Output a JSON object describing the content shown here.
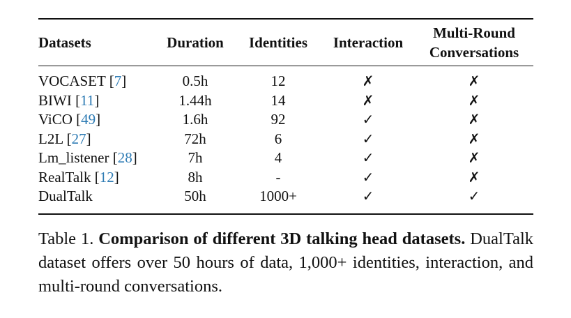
{
  "table": {
    "headers": {
      "datasets": "Datasets",
      "duration": "Duration",
      "identities": "Identities",
      "interaction": "Interaction",
      "multi_round_line1": "Multi-Round",
      "multi_round_line2": "Conversations"
    },
    "rows": [
      {
        "name": "VOCASET",
        "cite": "7",
        "duration": "0.5h",
        "identities": "12",
        "interaction": "✗",
        "multi_round": "✗"
      },
      {
        "name": "BIWI",
        "cite": "11",
        "duration": "1.44h",
        "identities": "14",
        "interaction": "✗",
        "multi_round": "✗"
      },
      {
        "name": "ViCO",
        "cite": "49",
        "duration": "1.6h",
        "identities": "92",
        "interaction": "✓",
        "multi_round": "✗"
      },
      {
        "name": "L2L",
        "cite": "27",
        "duration": "72h",
        "identities": "6",
        "interaction": "✓",
        "multi_round": "✗"
      },
      {
        "name": "Lm_listener",
        "cite": "28",
        "duration": "7h",
        "identities": "4",
        "interaction": "✓",
        "multi_round": "✗"
      },
      {
        "name": "RealTalk",
        "cite": "12",
        "duration": "8h",
        "identities": "-",
        "interaction": "✓",
        "multi_round": "✗"
      },
      {
        "name": "DualTalk",
        "cite": "",
        "duration": "50h",
        "identities": "1000+",
        "interaction": "✓",
        "multi_round": "✓"
      }
    ]
  },
  "caption": {
    "label": "Table 1.",
    "bold": "Comparison of different 3D talking head datasets.",
    "text": "DualTalk dataset offers over 50 hours of data, 1,000+ identities, interaction, and multi-round conversations."
  }
}
